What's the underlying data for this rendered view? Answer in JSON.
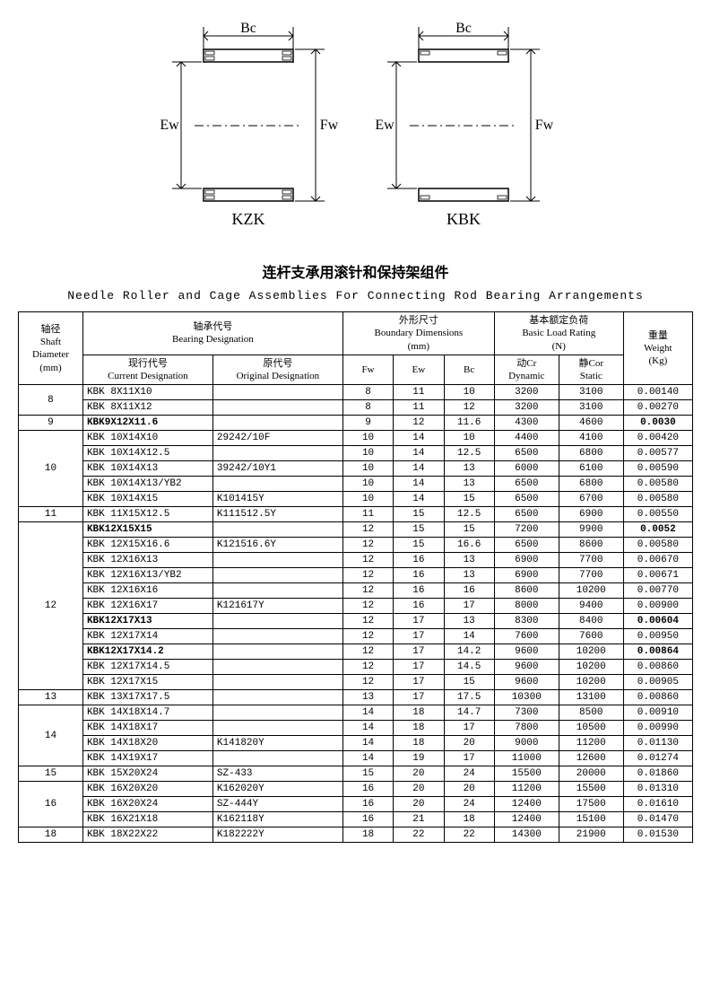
{
  "diagram": {
    "left_label": "KZK",
    "right_label": "KBK",
    "bc": "Bc",
    "ew": "Ew",
    "fw": "Fw"
  },
  "title_cn": "连杆支承用滚针和保持架组件",
  "title_en": "Needle Roller and Cage Assemblies For Connecting Rod Bearing Arrangements",
  "headers": {
    "shaft": "轴径\nShaft\nDiameter\n(mm)",
    "bearing": "轴承代号\nBearing Designation",
    "boundary": "外形尺寸\nBoundary Dimensions\n(mm)",
    "load": "基本额定负荷\nBasic Load Rating\n(N)",
    "weight": "重量\nWeight\n(Kg)",
    "current": "现行代号\nCurrent Designation",
    "original": "原代号\nOriginal Designation",
    "fw": "Fw",
    "ew": "Ew",
    "bc": "Bc",
    "dyn": "动Cr\nDynamic",
    "stat": "静Cor\nStatic"
  },
  "groups": [
    {
      "shaft": "8",
      "rows": [
        {
          "cur": "KBK 8X11X10",
          "orig": "",
          "fw": "8",
          "ew": "11",
          "bc": "10",
          "dyn": "3200",
          "stat": "3100",
          "wt": "0.00140"
        },
        {
          "cur": "KBK 8X11X12",
          "orig": "",
          "fw": "8",
          "ew": "11",
          "bc": "12",
          "dyn": "3200",
          "stat": "3100",
          "wt": "0.00270"
        }
      ]
    },
    {
      "shaft": "9",
      "rows": [
        {
          "cur": "KBK9X12X11.6",
          "orig": "",
          "fw": "9",
          "ew": "12",
          "bc": "11.6",
          "dyn": "4300",
          "stat": "4600",
          "wt": "0.0030",
          "bold": true
        }
      ]
    },
    {
      "shaft": "10",
      "rows": [
        {
          "cur": "KBK 10X14X10",
          "orig": "29242/10F",
          "fw": "10",
          "ew": "14",
          "bc": "10",
          "dyn": "4400",
          "stat": "4100",
          "wt": "0.00420"
        },
        {
          "cur": "KBK 10X14X12.5",
          "orig": "",
          "fw": "10",
          "ew": "14",
          "bc": "12.5",
          "dyn": "6500",
          "stat": "6800",
          "wt": "0.00577"
        },
        {
          "cur": "KBK 10X14X13",
          "orig": "39242/10Y1",
          "fw": "10",
          "ew": "14",
          "bc": "13",
          "dyn": "6000",
          "stat": "6100",
          "wt": "0.00590"
        },
        {
          "cur": "KBK 10X14X13/YB2",
          "orig": "",
          "fw": "10",
          "ew": "14",
          "bc": "13",
          "dyn": "6500",
          "stat": "6800",
          "wt": "0.00580"
        },
        {
          "cur": "KBK 10X14X15",
          "orig": "K101415Y",
          "fw": "10",
          "ew": "14",
          "bc": "15",
          "dyn": "6500",
          "stat": "6700",
          "wt": "0.00580"
        }
      ]
    },
    {
      "shaft": "11",
      "rows": [
        {
          "cur": "KBK 11X15X12.5",
          "orig": "K111512.5Y",
          "fw": "11",
          "ew": "15",
          "bc": "12.5",
          "dyn": "6500",
          "stat": "6900",
          "wt": "0.00550"
        }
      ]
    },
    {
      "shaft": "12",
      "rows": [
        {
          "cur": "KBK12X15X15",
          "orig": "",
          "fw": "12",
          "ew": "15",
          "bc": "15",
          "dyn": "7200",
          "stat": "9900",
          "wt": "0.0052",
          "bold": true
        },
        {
          "cur": "KBK 12X15X16.6",
          "orig": "K121516.6Y",
          "fw": "12",
          "ew": "15",
          "bc": "16.6",
          "dyn": "6500",
          "stat": "8600",
          "wt": "0.00580"
        },
        {
          "cur": "KBK 12X16X13",
          "orig": "",
          "fw": "12",
          "ew": "16",
          "bc": "13",
          "dyn": "6900",
          "stat": "7700",
          "wt": "0.00670"
        },
        {
          "cur": "KBK 12X16X13/YB2",
          "orig": "",
          "fw": "12",
          "ew": "16",
          "bc": "13",
          "dyn": "6900",
          "stat": "7700",
          "wt": "0.00671"
        },
        {
          "cur": "KBK 12X16X16",
          "orig": "",
          "fw": "12",
          "ew": "16",
          "bc": "16",
          "dyn": "8600",
          "stat": "10200",
          "wt": "0.00770"
        },
        {
          "cur": "KBK 12X16X17",
          "orig": "K121617Y",
          "fw": "12",
          "ew": "16",
          "bc": "17",
          "dyn": "8000",
          "stat": "9400",
          "wt": "0.00900"
        },
        {
          "cur": "KBK12X17X13",
          "orig": "",
          "fw": "12",
          "ew": "17",
          "bc": "13",
          "dyn": "8300",
          "stat": "8400",
          "wt": "0.00604",
          "bold": true
        },
        {
          "cur": "KBK 12X17X14",
          "orig": "",
          "fw": "12",
          "ew": "17",
          "bc": "14",
          "dyn": "7600",
          "stat": "7600",
          "wt": "0.00950"
        },
        {
          "cur": "KBK12X17X14.2",
          "orig": "",
          "fw": "12",
          "ew": "17",
          "bc": "14.2",
          "dyn": "9600",
          "stat": "10200",
          "wt": "0.00864",
          "bold": true
        },
        {
          "cur": "KBK 12X17X14.5",
          "orig": "",
          "fw": "12",
          "ew": "17",
          "bc": "14.5",
          "dyn": "9600",
          "stat": "10200",
          "wt": "0.00860"
        },
        {
          "cur": "KBK 12X17X15",
          "orig": "",
          "fw": "12",
          "ew": "17",
          "bc": "15",
          "dyn": "9600",
          "stat": "10200",
          "wt": "0.00905"
        }
      ]
    },
    {
      "shaft": "13",
      "rows": [
        {
          "cur": "KBK 13X17X17.5",
          "orig": "",
          "fw": "13",
          "ew": "17",
          "bc": "17.5",
          "dyn": "10300",
          "stat": "13100",
          "wt": "0.00860"
        }
      ]
    },
    {
      "shaft": "14",
      "rows": [
        {
          "cur": "KBK 14X18X14.7",
          "orig": "",
          "fw": "14",
          "ew": "18",
          "bc": "14.7",
          "dyn": "7300",
          "stat": "8500",
          "wt": "0.00910"
        },
        {
          "cur": "KBK 14X18X17",
          "orig": "",
          "fw": "14",
          "ew": "18",
          "bc": "17",
          "dyn": "7800",
          "stat": "10500",
          "wt": "0.00990"
        },
        {
          "cur": "KBK 14X18X20",
          "orig": "K141820Y",
          "fw": "14",
          "ew": "18",
          "bc": "20",
          "dyn": "9000",
          "stat": "11200",
          "wt": "0.01130"
        },
        {
          "cur": "KBK 14X19X17",
          "orig": "",
          "fw": "14",
          "ew": "19",
          "bc": "17",
          "dyn": "11000",
          "stat": "12600",
          "wt": "0.01274"
        }
      ]
    },
    {
      "shaft": "15",
      "rows": [
        {
          "cur": "KBK 15X20X24",
          "orig": "SZ-433",
          "fw": "15",
          "ew": "20",
          "bc": "24",
          "dyn": "15500",
          "stat": "20000",
          "wt": "0.01860"
        }
      ]
    },
    {
      "shaft": "16",
      "rows": [
        {
          "cur": "KBK 16X20X20",
          "orig": "K162020Y",
          "fw": "16",
          "ew": "20",
          "bc": "20",
          "dyn": "11200",
          "stat": "15500",
          "wt": "0.01310"
        },
        {
          "cur": "KBK 16X20X24",
          "orig": "SZ-444Y",
          "fw": "16",
          "ew": "20",
          "bc": "24",
          "dyn": "12400",
          "stat": "17500",
          "wt": "0.01610"
        },
        {
          "cur": "KBK 16X21X18",
          "orig": "K162118Y",
          "fw": "16",
          "ew": "21",
          "bc": "18",
          "dyn": "12400",
          "stat": "15100",
          "wt": "0.01470"
        }
      ]
    },
    {
      "shaft": "18",
      "rows": [
        {
          "cur": "KBK 18X22X22",
          "orig": "K182222Y",
          "fw": "18",
          "ew": "22",
          "bc": "22",
          "dyn": "14300",
          "stat": "21900",
          "wt": "0.01530"
        }
      ]
    }
  ]
}
